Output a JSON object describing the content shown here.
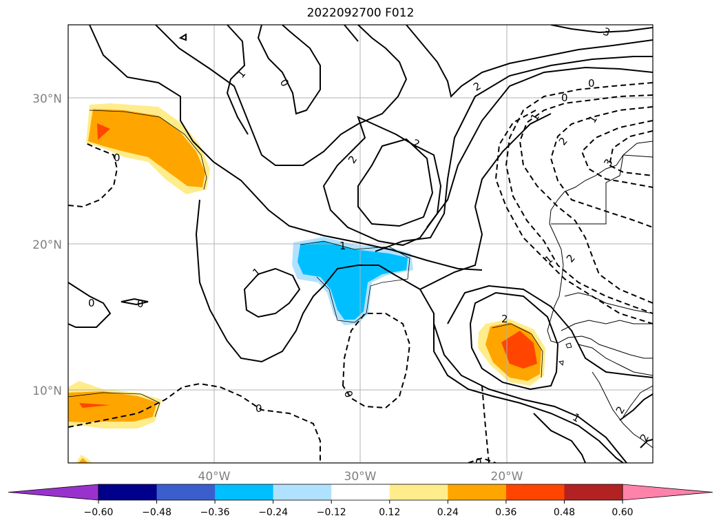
{
  "title": "2022092700 F012",
  "lat_labels": [
    "30°N",
    "20°N",
    "10°N"
  ],
  "lon_labels": [
    "40°W",
    "30°W",
    "20°W"
  ],
  "colorbar": {
    "ticks": [
      "−0.60",
      "−0.48",
      "−0.36",
      "−0.24",
      "−0.12",
      "0.12",
      "0.24",
      "0.36",
      "0.48",
      "0.60"
    ],
    "colors": [
      "#9932cc",
      "#00008b",
      "#3a5fcd",
      "#00bfff",
      "#b0e2ff",
      "#ffffff",
      "#ffec8b",
      "#ffa500",
      "#ff4500",
      "#b22222",
      "#ff82ab"
    ]
  },
  "contour_labels": [
    "1",
    "0",
    "2",
    "2",
    "2",
    "0",
    "3",
    "0",
    "0",
    "1",
    "1",
    "0",
    "0",
    "2",
    "1",
    "0",
    "0",
    "0",
    "1",
    "2",
    "2",
    "3",
    "1",
    "2",
    "1",
    "2"
  ]
}
